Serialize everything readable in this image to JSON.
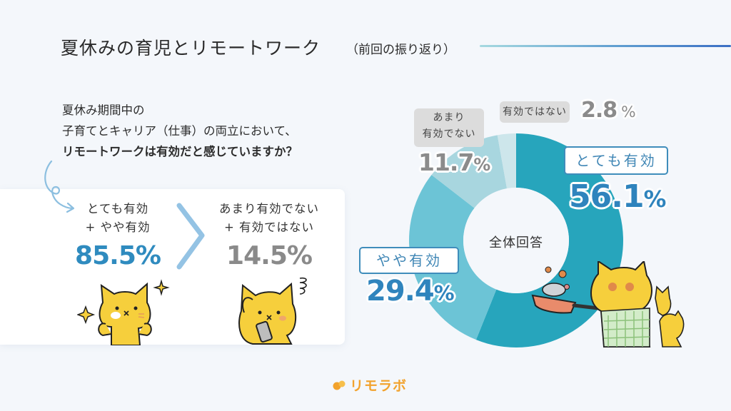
{
  "header": {
    "title": "夏休みの育児とリモートワーク",
    "subtitle": "（前回の振り返り）"
  },
  "question": {
    "line1": "夏休み期間中の",
    "line2": "子育てとキャリア（仕事）の両立において、",
    "line3": "リモートワークは有効だと感じていますか？"
  },
  "summary": {
    "positive": {
      "label_line1": "とても有効",
      "label_line2": "+ やや有効",
      "value": "85.5%"
    },
    "negative": {
      "label_line1": "あまり有効でない",
      "label_line2": "+ 有効ではない",
      "value": "14.5%"
    }
  },
  "donut": {
    "center_label": "全体回答",
    "labels": {
      "very": {
        "tag": "とても有効",
        "value": "56.1",
        "unit": "%"
      },
      "somewhat": {
        "tag": "やや有効",
        "value": "29.4",
        "unit": "%"
      },
      "not_really_line1": "あまり",
      "not_really_line2": "有効でない",
      "not_really_value": "11.7",
      "not_really_unit": "%",
      "not": {
        "tag": "有効ではない",
        "value": "2.8",
        "unit": "%"
      }
    }
  },
  "colors": {
    "very": "#27a5bc",
    "somewhat": "#6cc4d6",
    "not_really": "#a8d6df",
    "not": "#cde6eb",
    "accent_blue": "#2f84bd",
    "gray_text": "#8b8b8b",
    "logo_orange": "#f2a22c"
  },
  "footer": {
    "logo_text": "リモラボ"
  },
  "chart_data": {
    "type": "pie",
    "title": "夏休みの育児とリモートワーク（前回の振り返り）",
    "subtitle": "夏休み期間中の子育てとキャリア（仕事）の両立において、リモートワークは有効だと感じていますか？",
    "center_label": "全体回答",
    "donut": true,
    "categories": [
      "とても有効",
      "やや有効",
      "あまり有効でない",
      "有効ではない"
    ],
    "values": [
      56.1,
      29.4,
      11.7,
      2.8
    ],
    "unit": "%",
    "colors": [
      "#27a5bc",
      "#6cc4d6",
      "#a8d6df",
      "#cde6eb"
    ],
    "start_angle": "top, clockwise",
    "aggregates": [
      {
        "label": "とても有効 + やや有効",
        "value": 85.5
      },
      {
        "label": "あまり有効でない + 有効ではない",
        "value": 14.5
      }
    ]
  }
}
